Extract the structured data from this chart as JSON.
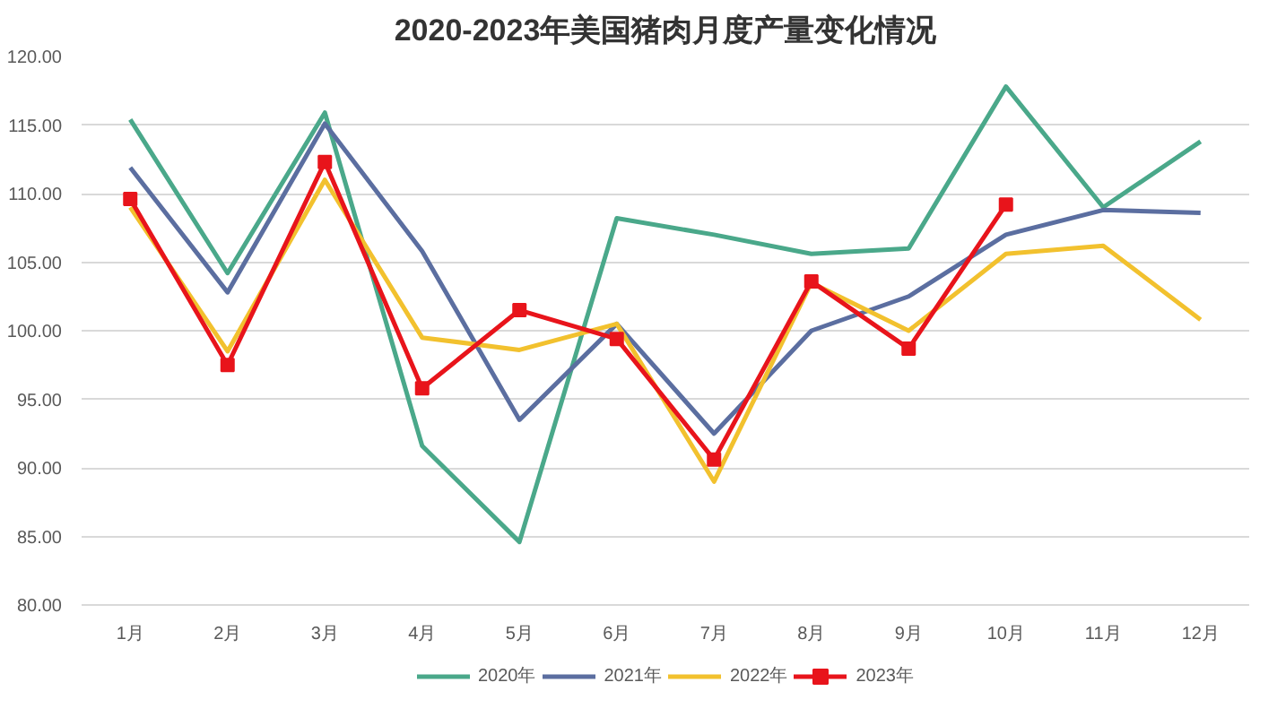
{
  "chart_data": {
    "type": "line",
    "title": "2020-2023年美国猪肉月度产量变化情况",
    "categories": [
      "1月",
      "2月",
      "3月",
      "4月",
      "5月",
      "6月",
      "7月",
      "8月",
      "9月",
      "10月",
      "11月",
      "12月"
    ],
    "series": [
      {
        "name": "2020年",
        "color": "#4aa88a",
        "marker": "none",
        "values": [
          115.4,
          104.2,
          115.9,
          91.6,
          84.6,
          108.2,
          107.0,
          105.6,
          106.0,
          117.8,
          109.0,
          113.8
        ]
      },
      {
        "name": "2021年",
        "color": "#5b6ea0",
        "marker": "none",
        "values": [
          111.9,
          102.8,
          115.1,
          105.8,
          93.5,
          100.5,
          92.5,
          100.0,
          102.5,
          107.0,
          108.8,
          108.6
        ]
      },
      {
        "name": "2022年",
        "color": "#f2c12e",
        "marker": "none",
        "values": [
          109.0,
          98.5,
          111.0,
          99.5,
          98.6,
          100.5,
          89.0,
          103.5,
          100.0,
          105.6,
          106.2,
          100.8
        ]
      },
      {
        "name": "2023年",
        "color": "#e8141b",
        "marker": "square",
        "values": [
          109.6,
          97.5,
          112.3,
          95.8,
          101.5,
          99.4,
          90.6,
          103.6,
          98.7,
          109.2,
          null,
          null
        ]
      }
    ],
    "ylim": [
      80,
      120
    ],
    "yticks": [
      {
        "value": 80,
        "label": "80.00"
      },
      {
        "value": 85,
        "label": "85.00"
      },
      {
        "value": 90,
        "label": "90.00"
      },
      {
        "value": 95,
        "label": "95.00"
      },
      {
        "value": 100,
        "label": "100.00"
      },
      {
        "value": 105,
        "label": "105.00"
      },
      {
        "value": 110,
        "label": "110.00"
      },
      {
        "value": 115,
        "label": "115.00"
      },
      {
        "value": 120,
        "label": "120.00"
      }
    ],
    "grid": "y",
    "legend": "bottom",
    "line_style": "solid"
  }
}
